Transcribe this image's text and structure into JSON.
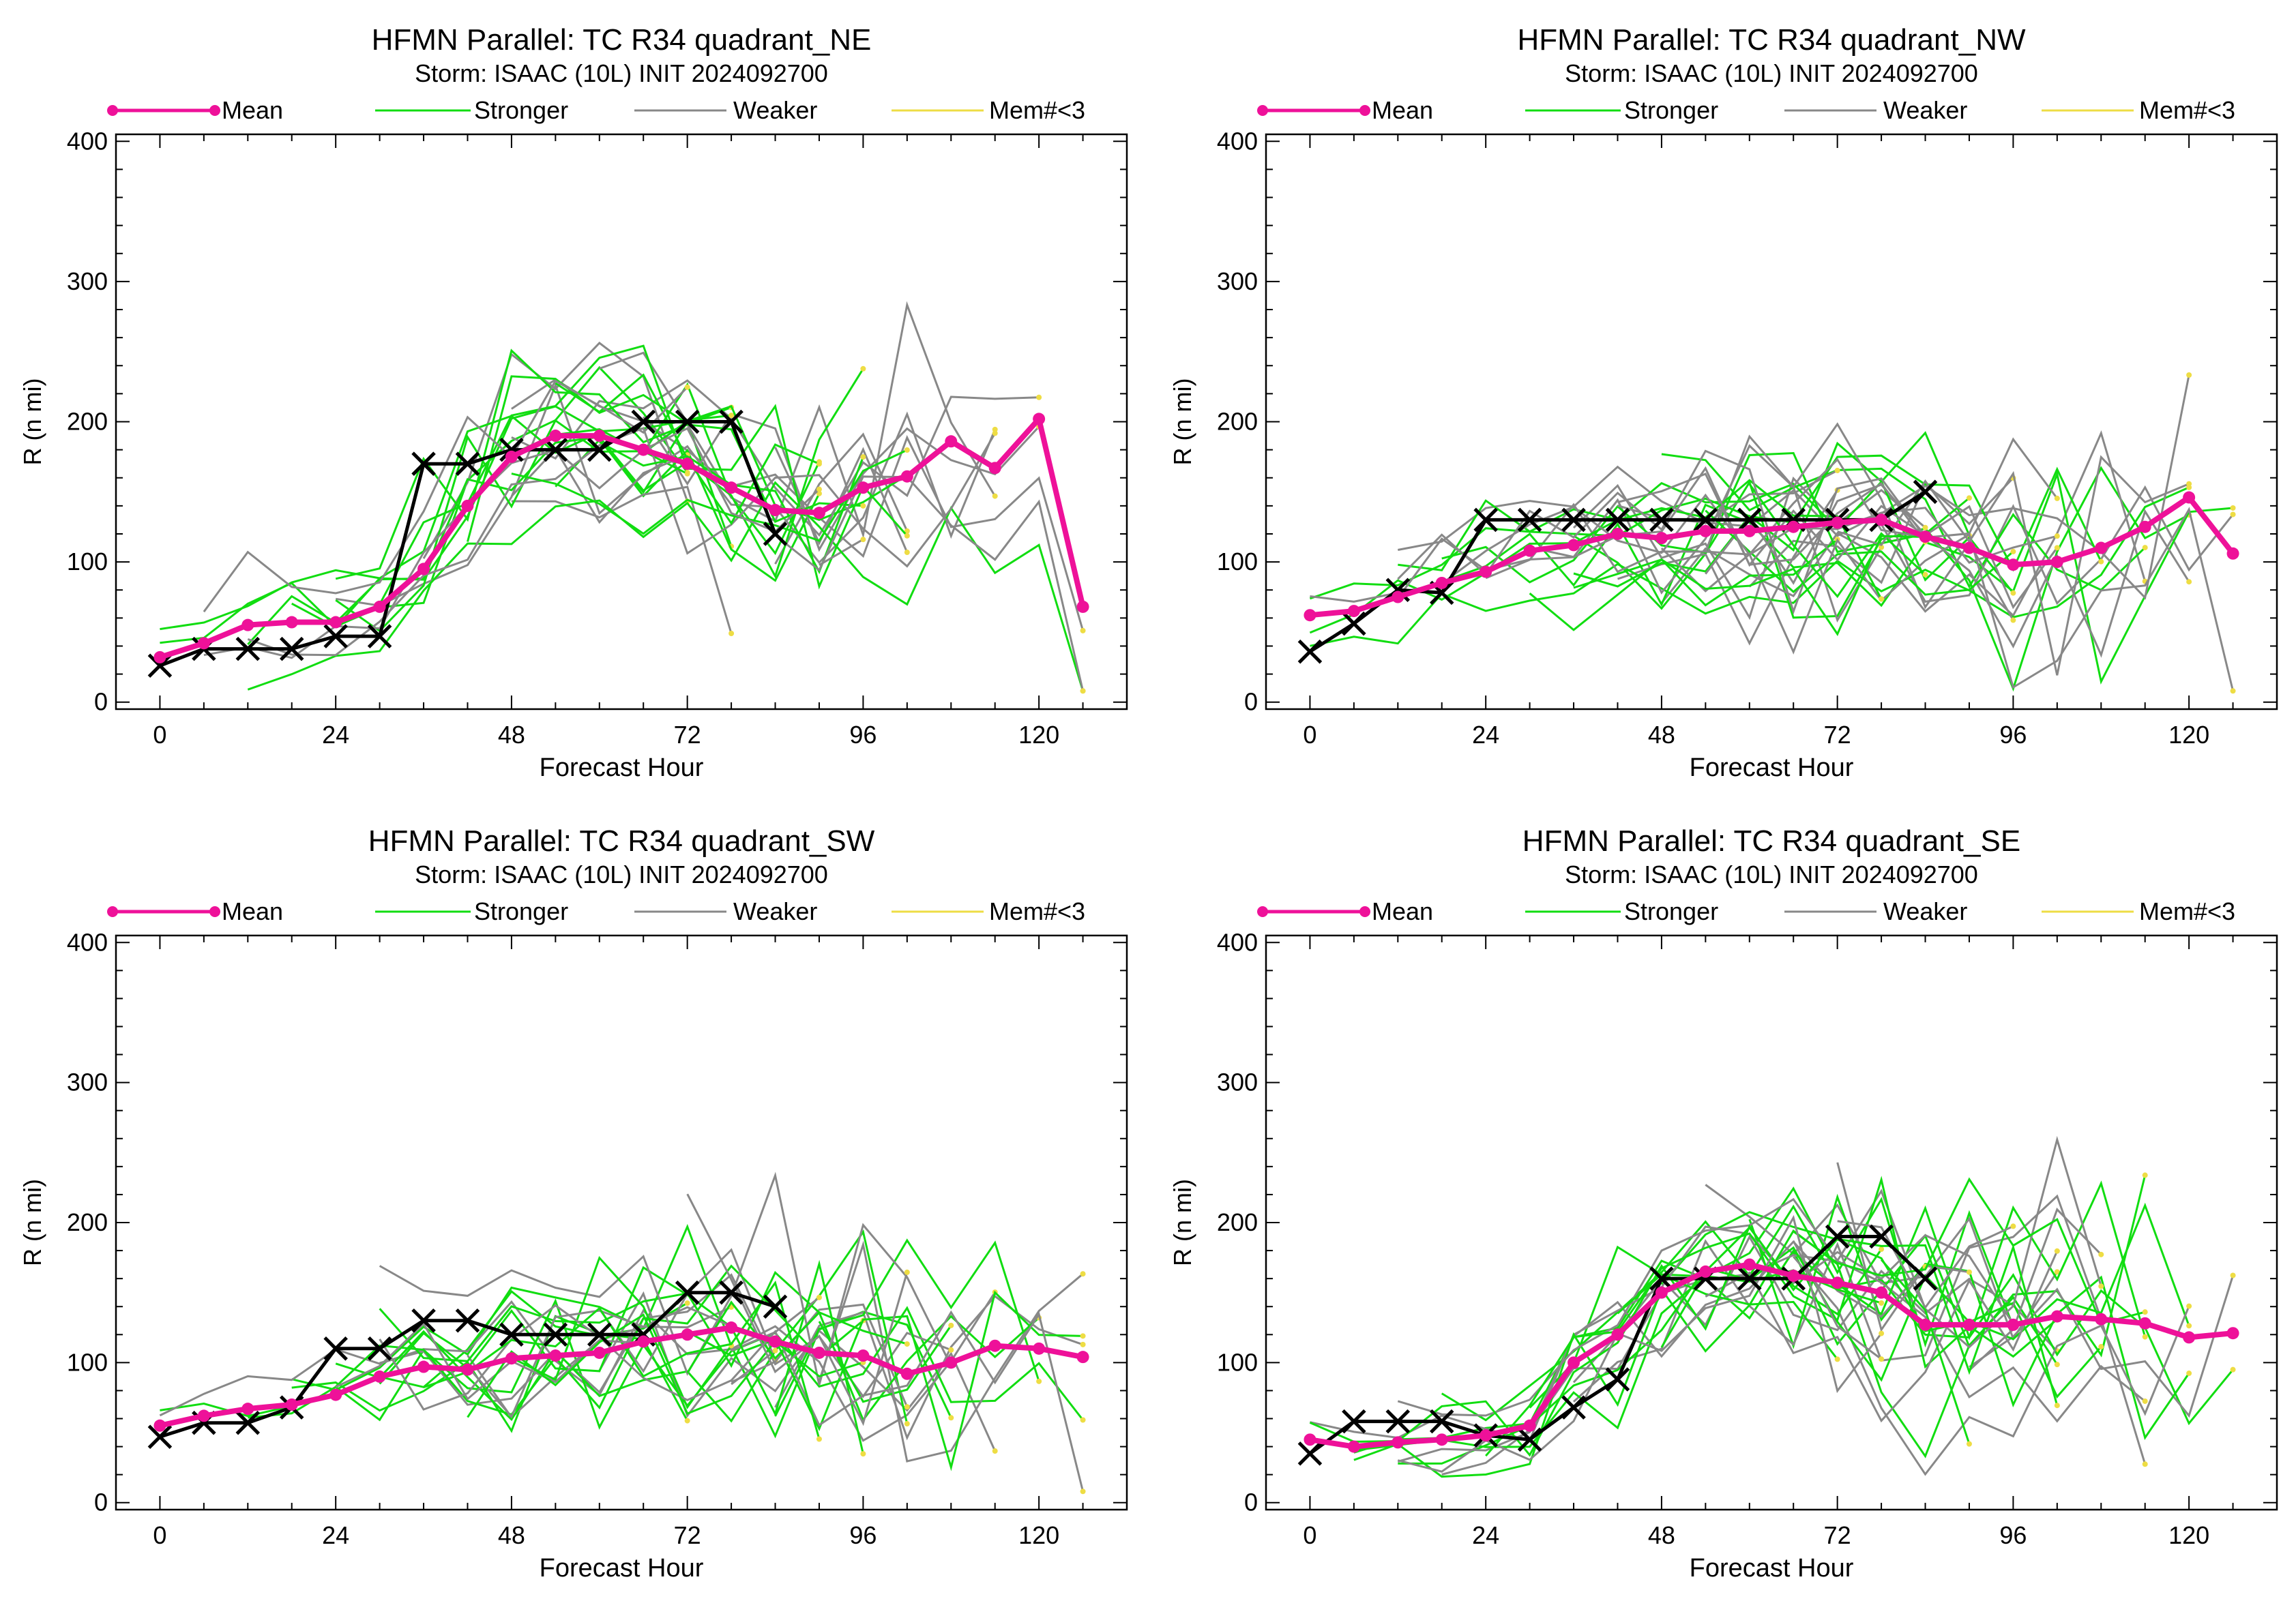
{
  "figure": {
    "legend": {
      "mean": "Mean",
      "stronger": "Stronger",
      "weaker": "Weaker",
      "members": "Mem#<3"
    }
  },
  "colors": {
    "mean": "#ee1199",
    "stronger": "#11dd11",
    "weaker": "#888888",
    "members": "#eedd44",
    "best_track": "#000000"
  },
  "chart_data": [
    {
      "type": "line",
      "title": "HFMN Parallel: TC  R34 quadrant_NE",
      "subtitle": "Storm: ISAAC (10L) INIT 2024092700",
      "xlabel": "Forecast Hour",
      "ylabel": "R (n mi)",
      "xlim": [
        -6,
        132
      ],
      "ylim": [
        -5,
        405
      ],
      "xticks": [
        0,
        24,
        48,
        72,
        96,
        120
      ],
      "yticks": [
        0,
        100,
        200,
        300,
        400
      ],
      "series": [
        {
          "name": "Mean",
          "x": [
            0,
            6,
            12,
            18,
            24,
            30,
            36,
            42,
            48,
            54,
            60,
            66,
            72,
            78,
            84,
            90,
            96,
            102,
            108,
            114,
            120,
            126
          ],
          "y": [
            32,
            42,
            55,
            57,
            57,
            68,
            95,
            140,
            175,
            190,
            190,
            180,
            170,
            153,
            137,
            135,
            153,
            161,
            186,
            167,
            202,
            68
          ]
        },
        {
          "x": [
            0,
            6,
            12,
            18,
            24,
            30,
            36,
            42,
            48,
            54,
            60,
            66,
            72,
            78,
            84
          ],
          "y": [
            26,
            38,
            38,
            38,
            47,
            47,
            170,
            170,
            180,
            180,
            180,
            200,
            200,
            200,
            120
          ]
        }
      ]
    },
    {
      "type": "line",
      "title": "HFMN Parallel: TC  R34 quadrant_NW",
      "subtitle": "Storm: ISAAC (10L) INIT 2024092700",
      "xlabel": "Forecast Hour",
      "ylabel": "R (n mi)",
      "xlim": [
        -6,
        132
      ],
      "ylim": [
        -5,
        405
      ],
      "xticks": [
        0,
        24,
        48,
        72,
        96,
        120
      ],
      "yticks": [
        0,
        100,
        200,
        300,
        400
      ],
      "series": [
        {
          "name": "Mean",
          "x": [
            0,
            6,
            12,
            18,
            24,
            30,
            36,
            42,
            48,
            54,
            60,
            66,
            72,
            78,
            84,
            90,
            96,
            102,
            108,
            114,
            120,
            126
          ],
          "y": [
            62,
            65,
            75,
            85,
            93,
            108,
            112,
            120,
            117,
            122,
            122,
            125,
            128,
            130,
            118,
            110,
            98,
            100,
            110,
            125,
            146,
            106
          ]
        },
        {
          "x": [
            0,
            6,
            12,
            18,
            24,
            30,
            36,
            42,
            48,
            54,
            60,
            66,
            72,
            78,
            84
          ],
          "y": [
            36,
            56,
            80,
            78,
            130,
            130,
            130,
            130,
            130,
            130,
            130,
            130,
            130,
            130,
            150
          ]
        }
      ]
    },
    {
      "type": "line",
      "title": "HFMN Parallel: TC  R34 quadrant_SW",
      "subtitle": "Storm: ISAAC (10L) INIT 2024092700",
      "xlabel": "Forecast Hour",
      "ylabel": "R (n mi)",
      "xlim": [
        -6,
        132
      ],
      "ylim": [
        -5,
        405
      ],
      "xticks": [
        0,
        24,
        48,
        72,
        96,
        120
      ],
      "yticks": [
        0,
        100,
        200,
        300,
        400
      ],
      "series": [
        {
          "name": "Mean",
          "x": [
            0,
            6,
            12,
            18,
            24,
            30,
            36,
            42,
            48,
            54,
            60,
            66,
            72,
            78,
            84,
            90,
            96,
            102,
            108,
            114,
            120,
            126
          ],
          "y": [
            55,
            62,
            67,
            70,
            77,
            90,
            97,
            95,
            103,
            105,
            107,
            115,
            120,
            125,
            115,
            107,
            105,
            92,
            100,
            112,
            110,
            104
          ]
        },
        {
          "x": [
            0,
            6,
            12,
            18,
            24,
            30,
            36,
            42,
            48,
            54,
            60,
            66,
            72,
            78,
            84
          ],
          "y": [
            47,
            57,
            57,
            68,
            110,
            110,
            130,
            130,
            120,
            120,
            120,
            120,
            150,
            150,
            140
          ]
        }
      ]
    },
    {
      "type": "line",
      "title": "HFMN Parallel: TC  R34 quadrant_SE",
      "subtitle": "Storm: ISAAC (10L) INIT 2024092700",
      "xlabel": "Forecast Hour",
      "ylabel": "R (n mi)",
      "xlim": [
        -6,
        132
      ],
      "ylim": [
        -5,
        405
      ],
      "xticks": [
        0,
        24,
        48,
        72,
        96,
        120
      ],
      "yticks": [
        0,
        100,
        200,
        300,
        400
      ],
      "series": [
        {
          "name": "Mean",
          "x": [
            0,
            6,
            12,
            18,
            24,
            30,
            36,
            42,
            48,
            54,
            60,
            66,
            72,
            78,
            84,
            90,
            96,
            102,
            108,
            114,
            120,
            126
          ],
          "y": [
            45,
            40,
            43,
            45,
            48,
            55,
            100,
            120,
            150,
            165,
            170,
            162,
            157,
            150,
            127,
            127,
            127,
            133,
            131,
            128,
            118,
            121
          ]
        },
        {
          "x": [
            0,
            6,
            12,
            18,
            24,
            30,
            36,
            42,
            48,
            54,
            60,
            66,
            72,
            78,
            84
          ],
          "y": [
            35,
            58,
            58,
            58,
            48,
            45,
            68,
            88,
            160,
            160,
            160,
            160,
            190,
            190,
            160
          ]
        }
      ]
    }
  ]
}
